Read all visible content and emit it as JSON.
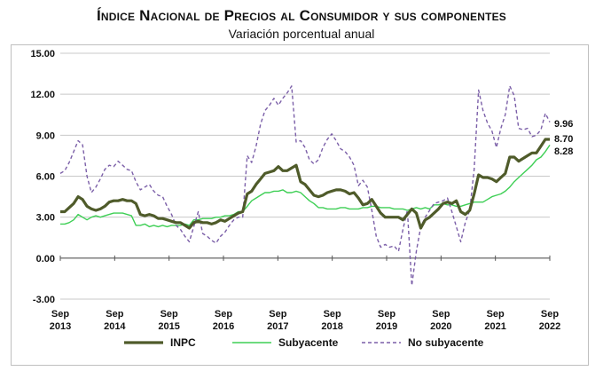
{
  "header": {
    "title": "Índice Nacional de Precios al Consumidor y sus componentes",
    "subtitle": "Variación porcentual anual"
  },
  "chart_data": {
    "type": "line",
    "title": "Índice Nacional de Precios al Consumidor y sus componentes",
    "subtitle": "Variación porcentual anual",
    "xlabel": "",
    "ylabel": "",
    "ylim": [
      -3,
      15
    ],
    "yticks": [
      "-3.00",
      "0.00",
      "3.00",
      "6.00",
      "9.00",
      "12.00",
      "15.00"
    ],
    "xticks": [
      {
        "label": "Sep",
        "year": "2013",
        "t": 0
      },
      {
        "label": "Sep",
        "year": "2014",
        "t": 12
      },
      {
        "label": "Sep",
        "year": "2015",
        "t": 24
      },
      {
        "label": "Sep",
        "year": "2016",
        "t": 36
      },
      {
        "label": "Sep",
        "year": "2017",
        "t": 48
      },
      {
        "label": "Sep",
        "year": "2018",
        "t": 60
      },
      {
        "label": "Sep",
        "year": "2019",
        "t": 72
      },
      {
        "label": "Sep",
        "year": "2020",
        "t": 84
      },
      {
        "label": "Sep",
        "year": "2021",
        "t": 96
      },
      {
        "label": "Sep",
        "year": "2022",
        "t": 108
      }
    ],
    "grid": "horizontal",
    "legend": "bottom",
    "series": [
      {
        "name": "INPC",
        "color": "#4f5b2a",
        "style": "solid-thick",
        "end_label": "8.70",
        "values": [
          3.4,
          3.4,
          3.7,
          4.0,
          4.5,
          4.3,
          3.8,
          3.6,
          3.5,
          3.6,
          3.8,
          4.1,
          4.2,
          4.2,
          4.3,
          4.2,
          4.2,
          4.0,
          3.2,
          3.1,
          3.2,
          3.1,
          2.9,
          2.9,
          2.8,
          2.7,
          2.6,
          2.6,
          2.4,
          2.2,
          2.6,
          2.7,
          2.6,
          2.6,
          2.5,
          2.6,
          2.8,
          2.7,
          2.9,
          3.1,
          3.3,
          3.4,
          4.7,
          4.9,
          5.4,
          5.8,
          6.2,
          6.3,
          6.4,
          6.7,
          6.4,
          6.4,
          6.6,
          6.8,
          5.6,
          5.4,
          5.0,
          4.6,
          4.5,
          4.6,
          4.8,
          4.9,
          5.0,
          5.0,
          4.9,
          4.7,
          4.8,
          4.4,
          3.9,
          4.0,
          4.3,
          3.8,
          3.3,
          3.0,
          3.0,
          3.0,
          3.0,
          2.8,
          3.2,
          3.6,
          3.3,
          2.2,
          2.8,
          3.0,
          3.3,
          3.6,
          4.0,
          4.1,
          4.0,
          4.2,
          3.4,
          3.2,
          3.5,
          4.7,
          6.1,
          5.9,
          5.9,
          5.8,
          5.6,
          5.9,
          6.2,
          7.4,
          7.4,
          7.1,
          7.3,
          7.5,
          7.7,
          7.7,
          8.2,
          8.7,
          8.7
        ]
      },
      {
        "name": "Subyacente",
        "color": "#3ecf55",
        "style": "solid-thin",
        "end_label": "8.28",
        "values": [
          2.5,
          2.5,
          2.6,
          2.8,
          3.2,
          3.0,
          2.8,
          3.0,
          3.1,
          3.0,
          3.1,
          3.2,
          3.3,
          3.3,
          3.3,
          3.2,
          3.1,
          2.4,
          2.4,
          2.5,
          2.3,
          2.4,
          2.3,
          2.4,
          2.3,
          2.4,
          2.4,
          2.4,
          2.5,
          2.4,
          2.8,
          2.8,
          2.9,
          2.9,
          2.9,
          3.0,
          3.0,
          3.1,
          3.1,
          3.2,
          3.4,
          3.4,
          3.8,
          4.2,
          4.4,
          4.6,
          4.8,
          4.8,
          4.9,
          4.9,
          5.0,
          4.8,
          4.8,
          4.9,
          4.8,
          4.5,
          4.2,
          4.0,
          3.7,
          3.7,
          3.6,
          3.6,
          3.6,
          3.7,
          3.7,
          3.6,
          3.6,
          3.6,
          3.7,
          3.7,
          3.8,
          3.8,
          3.7,
          3.7,
          3.7,
          3.6,
          3.6,
          3.6,
          3.5,
          3.6,
          3.7,
          3.6,
          3.7,
          3.6,
          3.9,
          3.9,
          4.0,
          3.9,
          3.9,
          3.8,
          3.8,
          3.9,
          4.0,
          4.1,
          4.1,
          4.1,
          4.3,
          4.5,
          4.6,
          4.7,
          4.9,
          5.2,
          5.6,
          5.9,
          6.2,
          6.5,
          6.8,
          7.2,
          7.4,
          7.8,
          8.28
        ]
      },
      {
        "name": "No subyacente",
        "color": "#7b5fa8",
        "style": "dashed",
        "end_label": "9.96",
        "values": [
          6.2,
          6.4,
          7.0,
          7.8,
          8.6,
          8.3,
          6.0,
          4.8,
          5.2,
          5.8,
          6.5,
          6.8,
          6.7,
          7.1,
          6.8,
          6.5,
          6.4,
          5.6,
          5.0,
          5.2,
          5.4,
          4.9,
          4.6,
          4.5,
          3.8,
          3.2,
          2.4,
          2.1,
          1.6,
          1.2,
          2.3,
          3.4,
          1.8,
          1.6,
          1.3,
          1.1,
          1.6,
          1.9,
          2.4,
          2.8,
          3.0,
          3.0,
          7.5,
          7.0,
          8.2,
          9.8,
          10.8,
          11.2,
          11.7,
          11.2,
          11.7,
          12.1,
          12.6,
          8.5,
          8.6,
          8.1,
          7.2,
          6.9,
          7.2,
          8.1,
          8.7,
          9.1,
          8.6,
          8.0,
          7.8,
          7.4,
          6.8,
          5.3,
          5.7,
          5.2,
          3.5,
          1.6,
          0.8,
          1.0,
          0.8,
          0.9,
          0.5,
          2.1,
          3.5,
          -2.0,
          0.5,
          2.3,
          3.0,
          3.5,
          4.0,
          4.1,
          4.2,
          4.4,
          3.4,
          2.3,
          1.2,
          2.6,
          3.5,
          6.5,
          12.3,
          10.8,
          9.9,
          9.3,
          8.1,
          9.5,
          10.5,
          12.6,
          11.9,
          9.5,
          9.4,
          9.5,
          8.9,
          9.0,
          9.4,
          10.6,
          9.96
        ]
      }
    ]
  }
}
